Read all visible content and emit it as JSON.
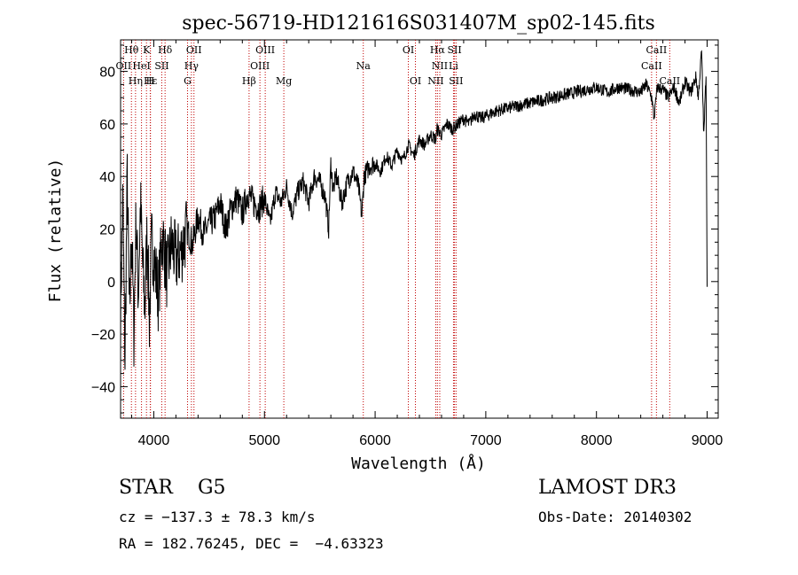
{
  "chart_data": {
    "type": "line",
    "title": "spec-56719-HD121616S031407M_sp02-145.fits",
    "xlabel": "Wavelength (Å)",
    "ylabel": "Flux (relative)",
    "xlim": [
      3700,
      9100
    ],
    "ylim": [
      -52,
      92
    ],
    "xticks": [
      4000,
      5000,
      6000,
      7000,
      8000,
      9000
    ],
    "xtick_labels": [
      "4000",
      "5000",
      "6000",
      "7000",
      "8000",
      "9000"
    ],
    "yticks": [
      -40,
      -20,
      0,
      20,
      40,
      60,
      80
    ],
    "ytick_labels": [
      "−40",
      "−20",
      "0",
      "20",
      "40",
      "60",
      "80"
    ],
    "series": [
      {
        "name": "spectrum",
        "x": [
          3700,
          3720,
          3740,
          3760,
          3780,
          3800,
          3820,
          3840,
          3860,
          3880,
          3900,
          3920,
          3940,
          3960,
          3980,
          4000,
          4040,
          4080,
          4120,
          4160,
          4200,
          4250,
          4300,
          4350,
          4400,
          4450,
          4500,
          4550,
          4600,
          4650,
          4700,
          4750,
          4800,
          4850,
          4900,
          4950,
          5000,
          5050,
          5100,
          5150,
          5200,
          5250,
          5300,
          5350,
          5400,
          5450,
          5500,
          5550,
          5580,
          5600,
          5620,
          5650,
          5700,
          5750,
          5800,
          5850,
          5880,
          5900,
          5950,
          6000,
          6050,
          6100,
          6150,
          6200,
          6250,
          6300,
          6350,
          6400,
          6450,
          6500,
          6550,
          6560,
          6600,
          6650,
          6700,
          6750,
          6800,
          6850,
          6900,
          6950,
          7000,
          7100,
          7200,
          7300,
          7400,
          7500,
          7600,
          7700,
          7800,
          7900,
          8000,
          8100,
          8200,
          8300,
          8400,
          8450,
          8500,
          8520,
          8550,
          8600,
          8650,
          8700,
          8750,
          8800,
          8850,
          8900,
          8920,
          8950,
          8970,
          8990,
          9000
        ],
        "y": [
          -10,
          30,
          -30,
          40,
          -15,
          20,
          -20,
          25,
          -5,
          30,
          5,
          -10,
          20,
          -15,
          15,
          10,
          -5,
          18,
          2,
          15,
          8,
          12,
          20,
          14,
          25,
          18,
          22,
          24,
          30,
          20,
          28,
          32,
          26,
          34,
          30,
          28,
          32,
          22,
          34,
          30,
          36,
          26,
          34,
          38,
          30,
          40,
          38,
          32,
          20,
          45,
          35,
          40,
          30,
          38,
          42,
          36,
          25,
          40,
          44,
          45,
          42,
          48,
          44,
          50,
          46,
          52,
          48,
          54,
          52,
          56,
          54,
          58,
          56,
          60,
          58,
          60,
          62,
          60,
          64,
          62,
          63,
          65,
          66,
          67,
          68,
          69,
          70,
          71,
          72,
          73,
          74,
          72,
          74,
          73,
          72,
          75,
          70,
          62,
          74,
          73,
          70,
          74,
          68,
          76,
          72,
          78,
          70,
          88,
          55,
          80,
          -2
        ]
      }
    ],
    "line_groups": [
      {
        "name": "top",
        "labels": [
          "Hθ",
          "K",
          "Hδ",
          "OII",
          "OIII",
          "OI",
          "Hα",
          "SII",
          "CaII"
        ],
        "wavelengths": [
          3798,
          3934,
          4102,
          4363,
          5007,
          6300,
          6563,
          6717,
          8542
        ]
      },
      {
        "name": "middle",
        "labels": [
          "OII",
          "HeI",
          "SII",
          "Hγ",
          "OIII",
          "Na",
          "NII",
          "Li",
          "CaII"
        ],
        "wavelengths": [
          3727,
          3889,
          4072,
          4340,
          4959,
          5893,
          6584,
          6708,
          8498
        ]
      },
      {
        "name": "bottom",
        "labels": [
          "Hε",
          "Hη",
          "H",
          "G",
          "Hβ",
          "Mg",
          "OI",
          "NII",
          "SII",
          "CaII"
        ],
        "wavelengths": [
          3970,
          3835,
          3968,
          4305,
          4861,
          5175,
          6364,
          6548,
          6731,
          8662
        ]
      }
    ]
  },
  "info": {
    "star_class": "STAR    G5",
    "cz": "cz = −137.3 ± 78.3 km/s",
    "radec": "RA = 182.76245, DEC =  −4.63323",
    "survey": "LAMOST DR3",
    "obs_date": "Obs-Date: 20140302"
  }
}
